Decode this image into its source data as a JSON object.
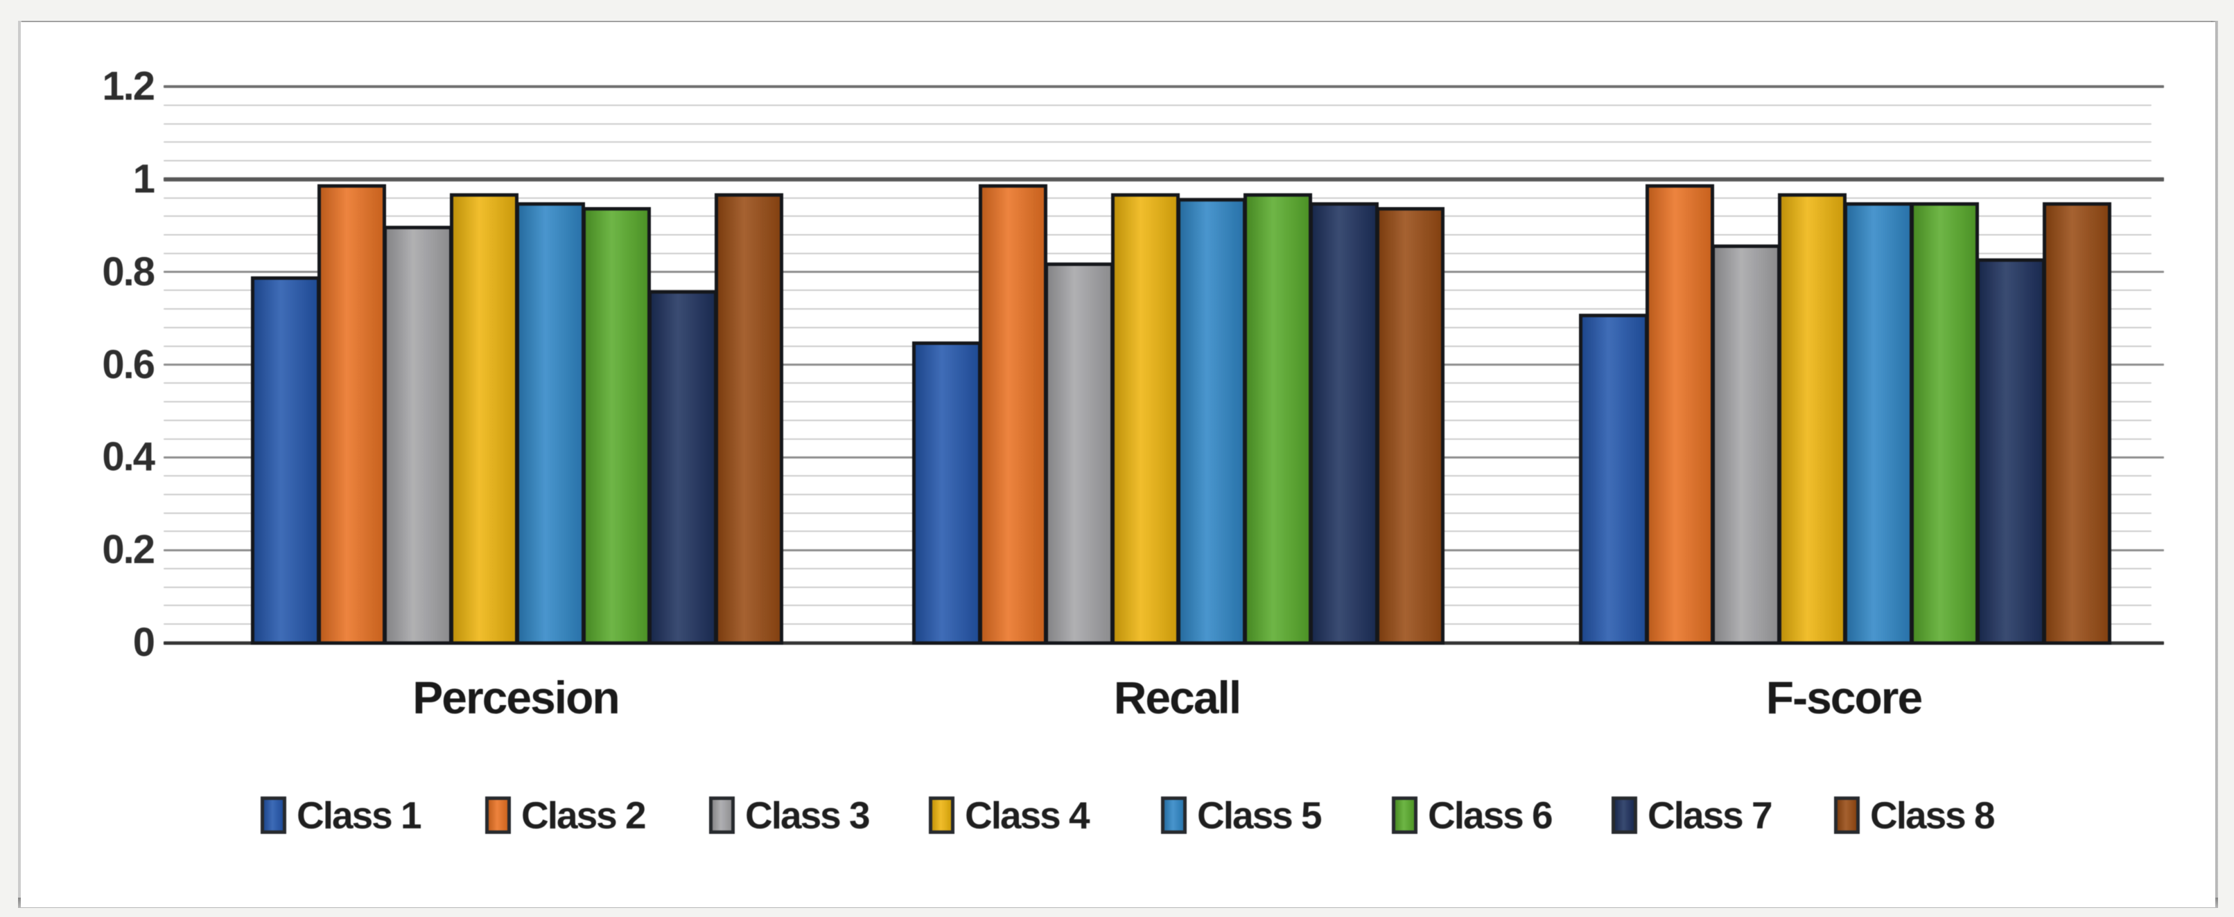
{
  "page": {
    "background": "#f3f3f1",
    "panel_background": "#ffffff",
    "edge_color": "#9d9d9d"
  },
  "chart_data": {
    "type": "bar",
    "title": "",
    "xlabel": "",
    "ylabel": "",
    "categories": [
      "Percesion",
      "Recall",
      "F-score"
    ],
    "series": [
      {
        "name": "Class 1",
        "color": "#2156af",
        "values": [
          0.79,
          0.65,
          0.71
        ]
      },
      {
        "name": "Class 2",
        "color": "#ee7220",
        "values": [
          0.99,
          0.99,
          0.99
        ]
      },
      {
        "name": "Class 3",
        "color": "#a6a6a9",
        "values": [
          0.9,
          0.82,
          0.86
        ]
      },
      {
        "name": "Class 4",
        "color": "#f2b70a",
        "values": [
          0.97,
          0.97,
          0.97
        ]
      },
      {
        "name": "Class 5",
        "color": "#2d87c9",
        "values": [
          0.95,
          0.96,
          0.95
        ]
      },
      {
        "name": "Class 6",
        "color": "#58ad29",
        "values": [
          0.94,
          0.97,
          0.95
        ]
      },
      {
        "name": "Class 7",
        "color": "#1b2f5d",
        "values": [
          0.76,
          0.95,
          0.83
        ]
      },
      {
        "name": "Class 8",
        "color": "#9a4a10",
        "values": [
          0.97,
          0.94,
          0.95
        ]
      }
    ],
    "ylim": [
      0,
      1.2
    ],
    "yticks": [
      0,
      0.2,
      0.4,
      0.6,
      0.8,
      1,
      1.2
    ],
    "ytick_labels": [
      "0",
      "0.2",
      "0.4",
      "0.6",
      "0.8",
      "1",
      "1.2"
    ],
    "minor_gridline_step": 0.04,
    "grid": "major+minor horizontal",
    "legend_position": "bottom",
    "bar_border_color": "#121418"
  }
}
